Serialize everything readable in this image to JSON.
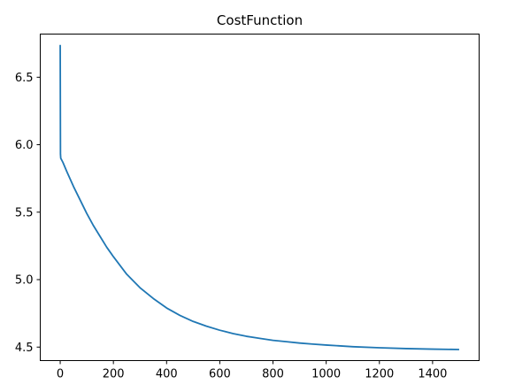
{
  "chart_data": {
    "type": "line",
    "title": "CostFunction",
    "xlabel": "",
    "ylabel": "",
    "xlim": [
      -75,
      1575
    ],
    "ylim": [
      4.4,
      6.82
    ],
    "x_ticks": [
      0,
      200,
      400,
      600,
      800,
      1000,
      1200,
      1400
    ],
    "y_ticks": [
      4.5,
      5.0,
      5.5,
      6.0,
      6.5
    ],
    "y_tick_labels": [
      "4.5",
      "5.0",
      "5.5",
      "6.0",
      "6.5"
    ],
    "grid": false,
    "legend": "none",
    "series": [
      {
        "color": "#1f77b4",
        "x": [
          0,
          1,
          2,
          10,
          25,
          50,
          75,
          100,
          125,
          150,
          175,
          200,
          250,
          300,
          350,
          400,
          450,
          500,
          550,
          600,
          650,
          700,
          750,
          800,
          850,
          900,
          950,
          1000,
          1100,
          1200,
          1300,
          1400,
          1500
        ],
        "y": [
          6.74,
          5.93,
          5.9,
          5.87,
          5.8,
          5.69,
          5.59,
          5.49,
          5.4,
          5.32,
          5.24,
          5.17,
          5.04,
          4.94,
          4.86,
          4.79,
          4.735,
          4.69,
          4.655,
          4.625,
          4.6,
          4.58,
          4.565,
          4.55,
          4.54,
          4.53,
          4.522,
          4.515,
          4.503,
          4.495,
          4.489,
          4.485,
          4.482
        ]
      }
    ]
  }
}
